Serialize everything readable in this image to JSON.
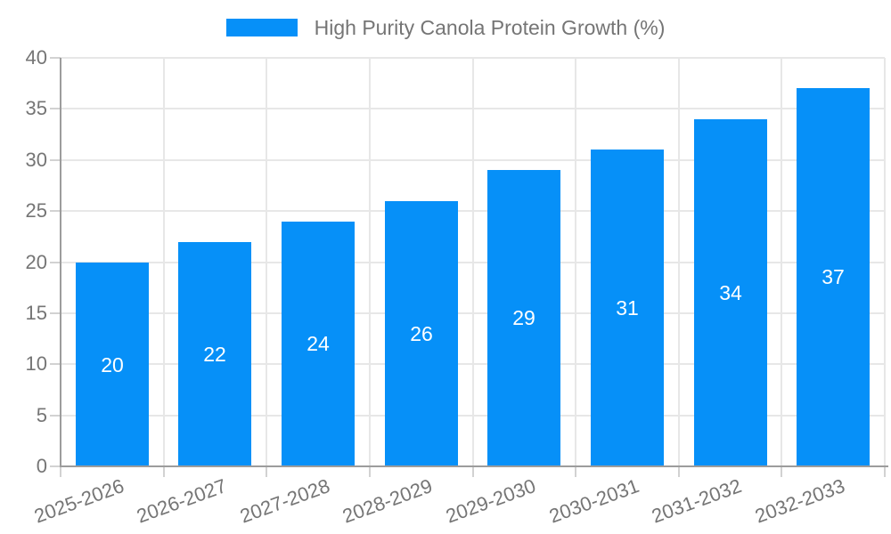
{
  "chart_data": {
    "type": "bar",
    "title": "High Purity Canola Protein Growth (%)",
    "legend_position": "top-center",
    "categories": [
      "2025-2026",
      "2026-2027",
      "2027-2028",
      "2028-2029",
      "2029-2030",
      "2030-2031",
      "2031-2032",
      "2032-2033"
    ],
    "series": [
      {
        "name": "High Purity Canola Protein Growth (%)",
        "values": [
          20,
          22,
          24,
          26,
          29,
          31,
          34,
          37
        ]
      }
    ],
    "xlabel": "",
    "ylabel": "",
    "ylim": [
      0,
      40
    ],
    "ytick_step": 5,
    "yticks": [
      0,
      5,
      10,
      15,
      20,
      25,
      30,
      35,
      40
    ],
    "grid": true,
    "x_label_rotation_deg": -20,
    "bar_labels_inside": true,
    "colors": {
      "bar": "#0690f8",
      "bar_value_text": "#ffffff",
      "axis_line": "#9c9c9c",
      "gridline": "#e7e7e7",
      "tick_mark": "#d2d2d2",
      "tick_label": "#757575",
      "legend_text": "#757575",
      "background": "#ffffff"
    }
  }
}
